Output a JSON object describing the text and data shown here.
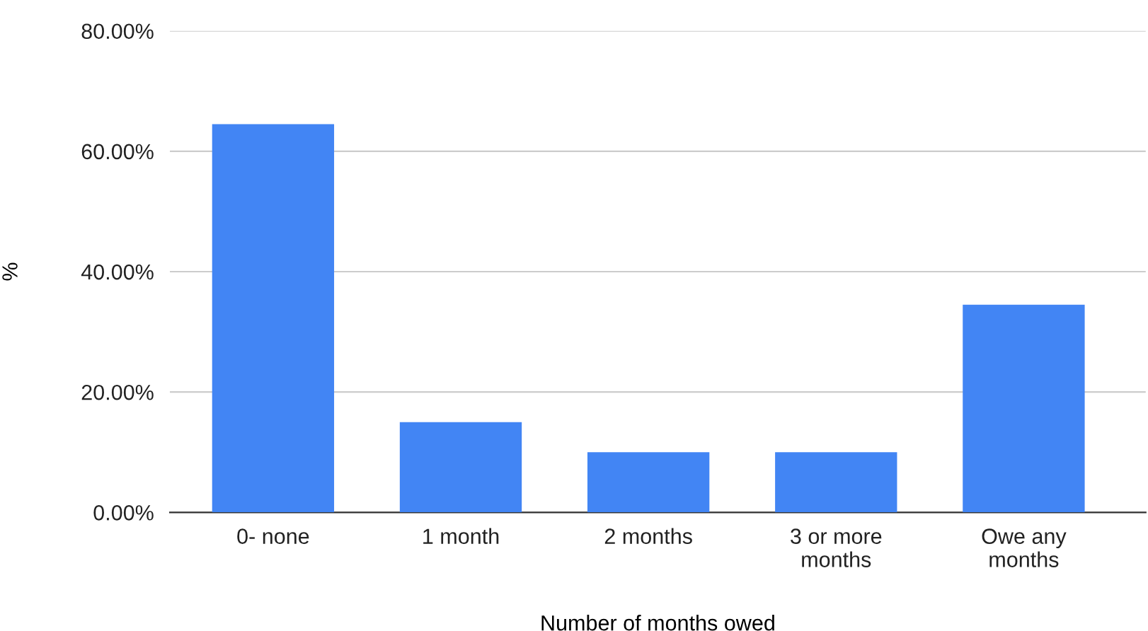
{
  "chart_data": {
    "type": "bar",
    "xlabel": "Number of months owed",
    "ylabel": "%",
    "categories": [
      "0- none",
      "1 month",
      "2 months",
      "3 or more\nmonths",
      "Owe any\nmonths"
    ],
    "values": [
      64.5,
      15,
      10,
      10,
      34.5
    ],
    "color": "#4285f4",
    "ylim": [
      0,
      80
    ],
    "yticks": [
      {
        "value": 0,
        "label": "0.00%"
      },
      {
        "value": 20,
        "label": "20.00%"
      },
      {
        "value": 40,
        "label": "40.00%"
      },
      {
        "value": 60,
        "label": "60.00%"
      },
      {
        "value": 80,
        "label": "80.00%"
      }
    ],
    "grid": "y"
  }
}
